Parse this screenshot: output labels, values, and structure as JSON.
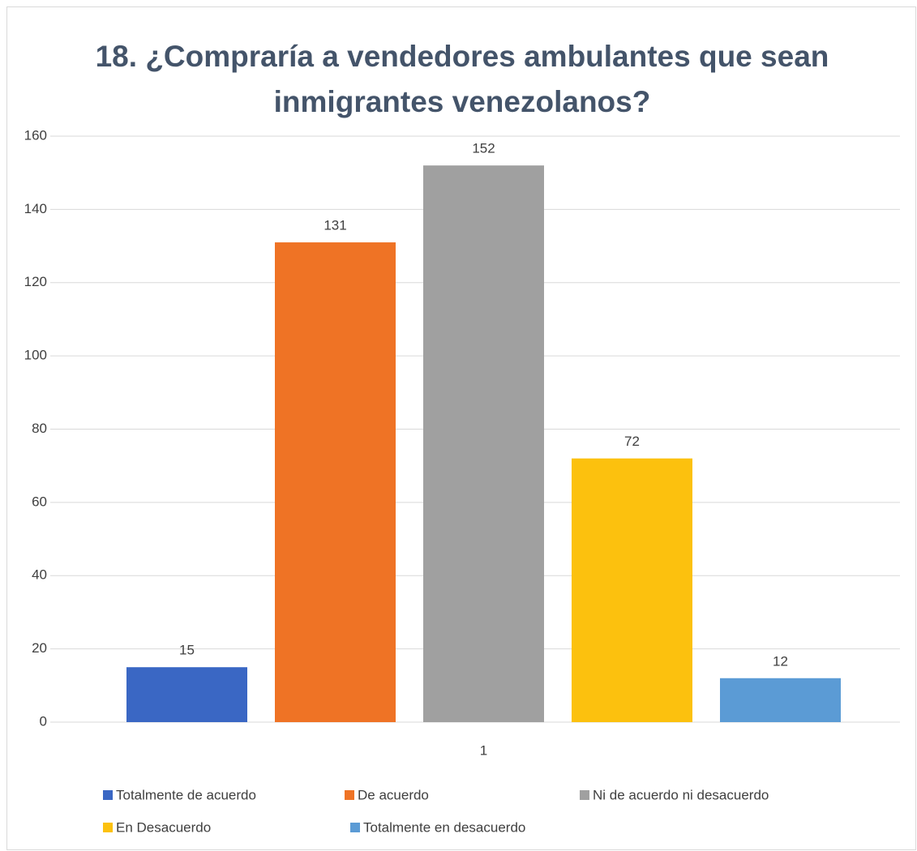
{
  "chart_data": {
    "type": "bar",
    "title": "18. ¿Compraría a vendedores ambulantes que sean inmigrantes venezolanos?",
    "categories": [
      "1"
    ],
    "series": [
      {
        "name": "Totalmente de acuerdo",
        "color": "#3a67c4",
        "values": [
          15
        ]
      },
      {
        "name": "De acuerdo",
        "color": "#ef7325",
        "values": [
          131
        ]
      },
      {
        "name": "Ni de acuerdo ni desacuerdo",
        "color": "#a0a0a0",
        "values": [
          152
        ]
      },
      {
        "name": "En Desacuerdo",
        "color": "#fcc10e",
        "values": [
          72
        ]
      },
      {
        "name": "Totalmente en desacuerdo",
        "color": "#5b9bd5",
        "values": [
          12
        ]
      }
    ],
    "ylim": [
      0,
      160
    ],
    "yticks": [
      0,
      20,
      40,
      60,
      80,
      100,
      120,
      140,
      160
    ],
    "grid": true,
    "legend": "bottom"
  }
}
